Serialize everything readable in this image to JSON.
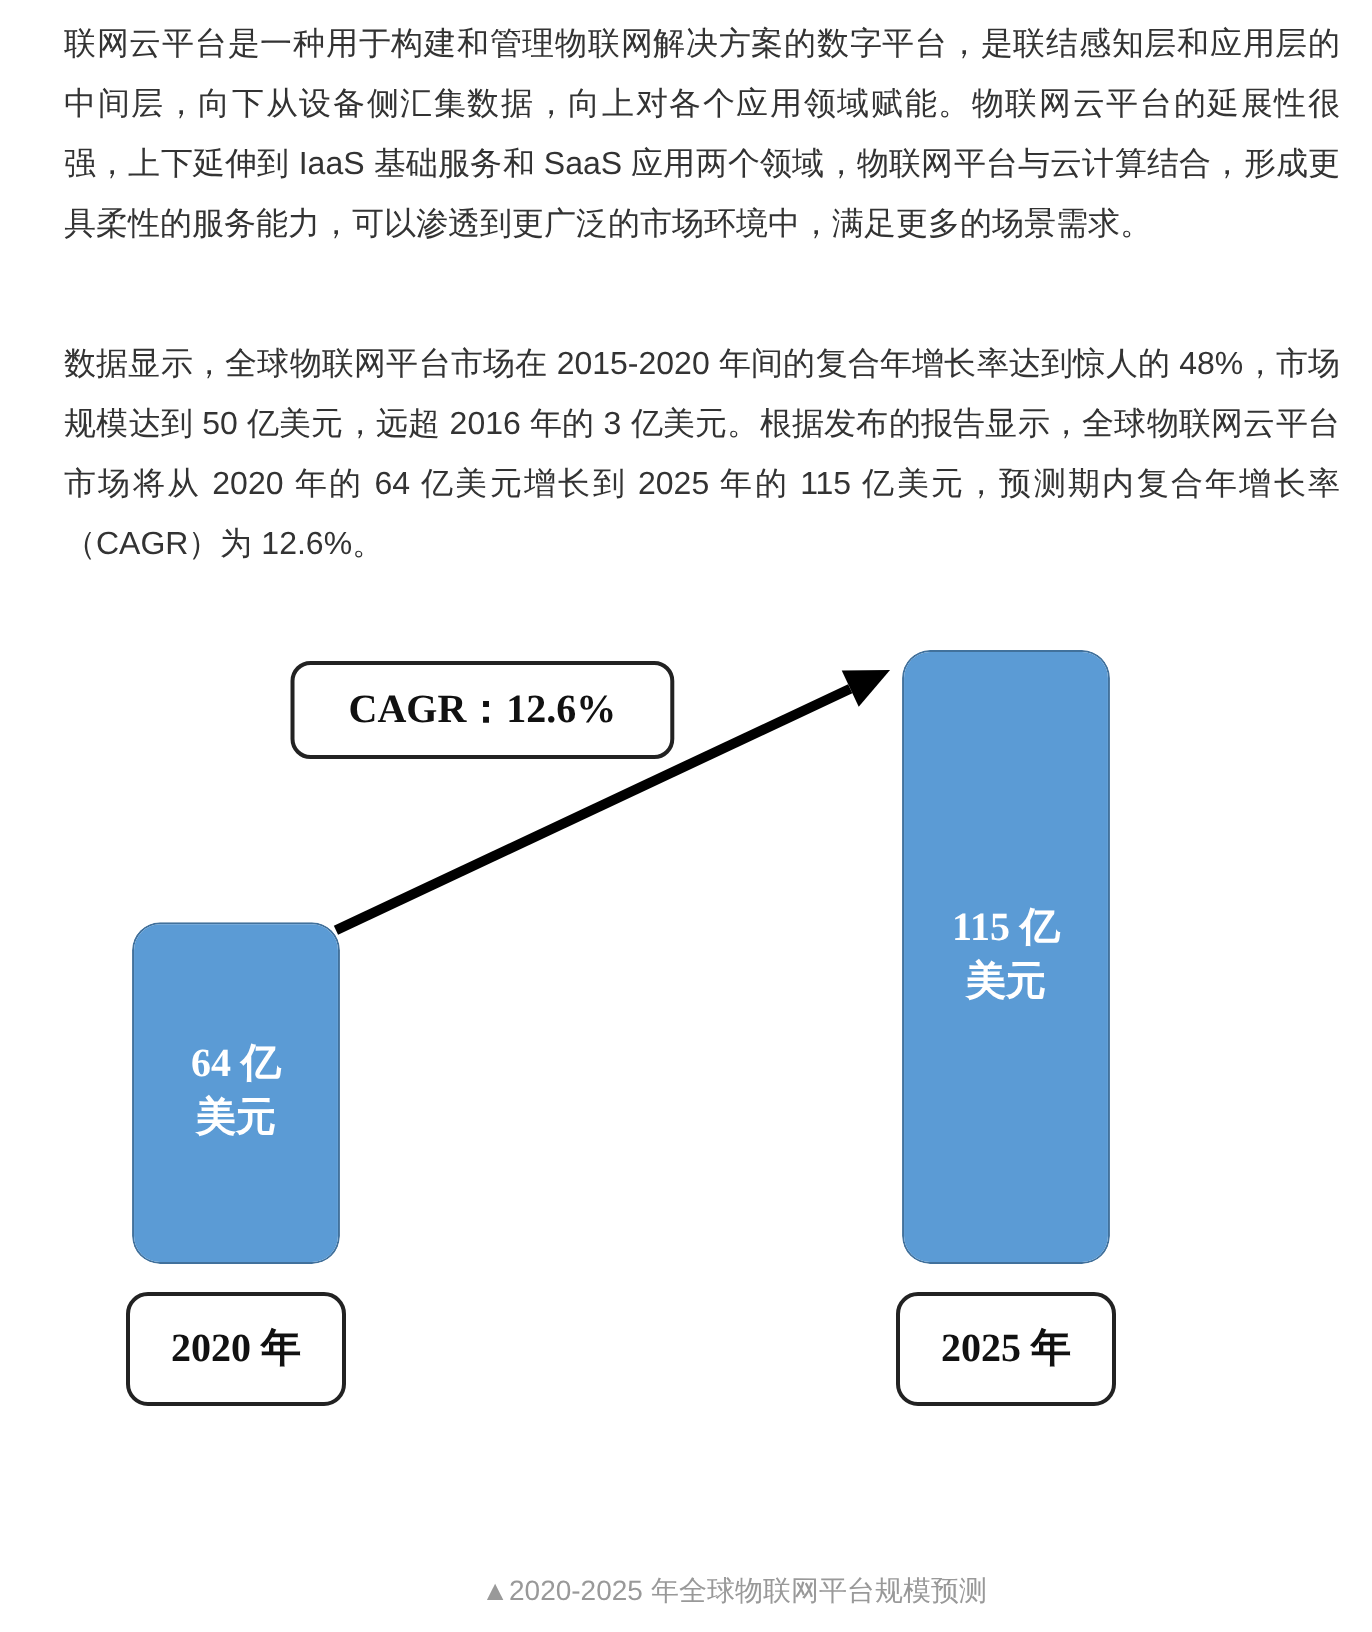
{
  "chart_data": {
    "type": "bar",
    "title": "▲2020-2025 年全球物联网平台规模预测",
    "annotations": [
      "联网云平台是一种用于构建和管理物联网解决方案的数字平台，是联结感知层和应用层的中间层，向下从设备侧汇集数据，向上对各个应用领域赋能。物联网云平台的延展性很强，上下延伸到 IaaS 基础服务和 SaaS 应用两个领域，物联网平台与云计算结合，形成更具柔性的服务能力，可以渗透到更广泛的市场环境中，满足更多的场景需求。",
      "数据显示，全球物联网平台市场在 2015-2020 年间的复合年增长率达到惊人的 48%，市场规模达到 50 亿美元，远超 2016 年的 3 亿美元。根据发布的报告显示，全球物联网云平台市场将从 2020 年的 64 亿美元增长到 2025 年的 115 亿美元，预测期内复合年增长率（CAGR）为 12.6%。",
      "CAGR：12.6%"
    ],
    "categories": [
      "2020 年",
      "2025 年"
    ],
    "values": [
      64,
      115
    ],
    "value_labels": [
      "64 亿美元",
      "115 亿美元"
    ],
    "color": "#5b9bd5",
    "tick_labels": "x"
  }
}
